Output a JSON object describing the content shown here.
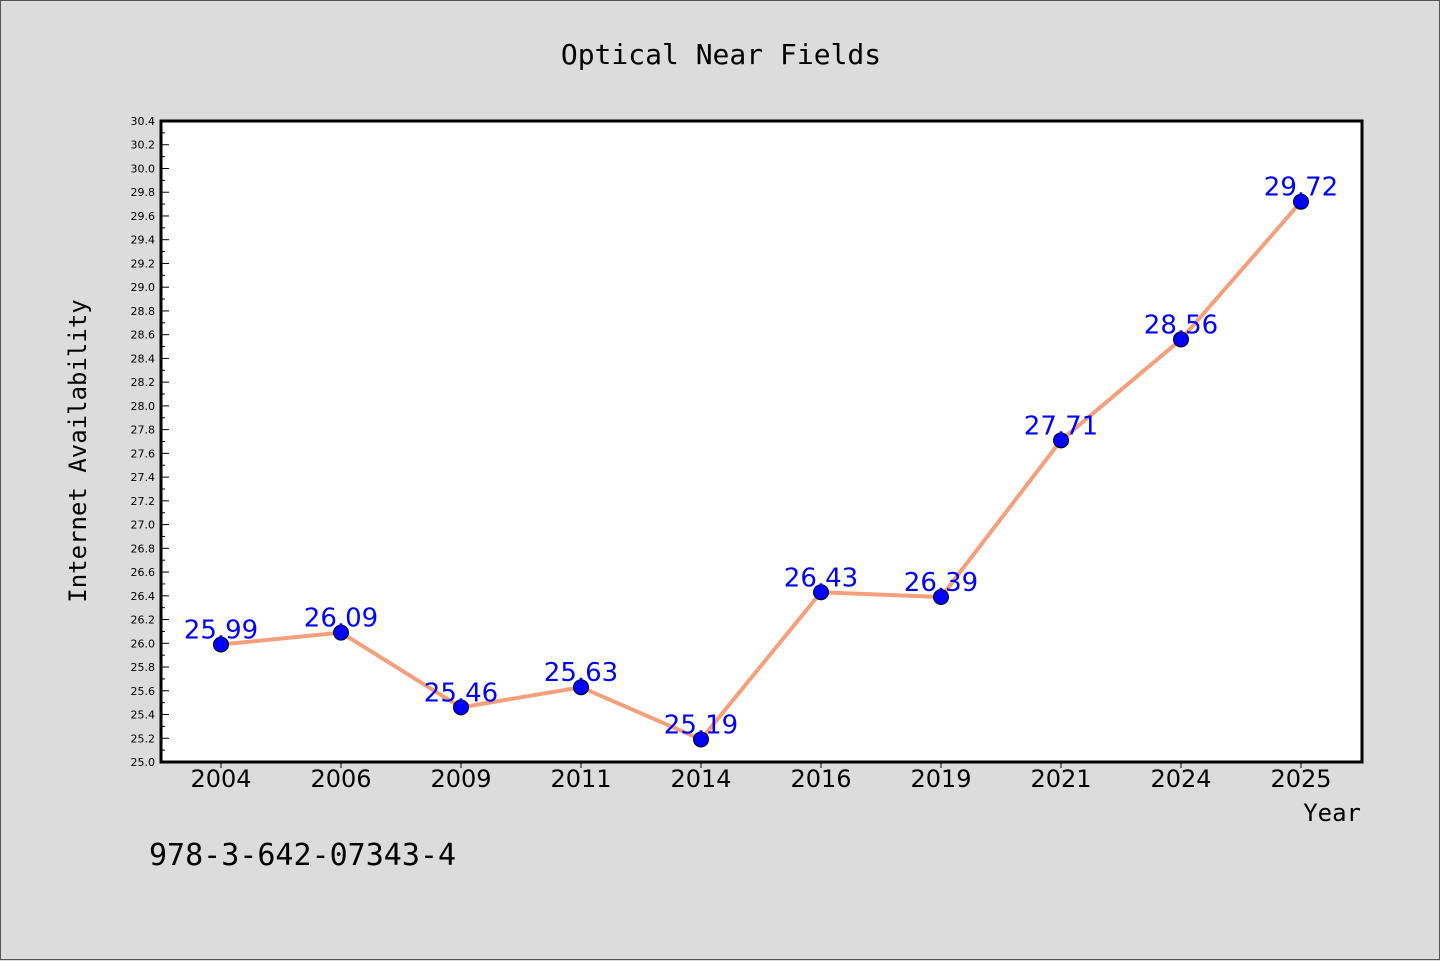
{
  "chart_data": {
    "type": "line",
    "title": "Optical Near Fields",
    "xlabel": "Year",
    "ylabel": "Internet Availability",
    "categories": [
      "2004",
      "2006",
      "2009",
      "2011",
      "2014",
      "2016",
      "2019",
      "2021",
      "2024",
      "2025"
    ],
    "values": [
      25.99,
      26.09,
      25.46,
      25.63,
      25.19,
      26.43,
      26.39,
      27.71,
      28.56,
      29.72
    ],
    "data_labels": [
      "25.99",
      "26.09",
      "25.46",
      "25.63",
      "25.19",
      "26.43",
      "26.39",
      "27.71",
      "28.56",
      "29.72"
    ],
    "ylim": [
      25.0,
      30.4
    ],
    "yticks": [
      "25.0",
      "25.2",
      "25.4",
      "25.6",
      "25.8",
      "26.0",
      "26.2",
      "26.4",
      "26.6",
      "26.8",
      "27.0",
      "27.2",
      "27.4",
      "27.6",
      "27.8",
      "28.0",
      "28.2",
      "28.4",
      "28.6",
      "28.8",
      "29.0",
      "29.2",
      "29.4",
      "29.6",
      "29.8",
      "30.0",
      "30.2",
      "30.4"
    ],
    "grid": false,
    "line_color": "#f4a07c",
    "marker_color": "#0000ff",
    "label_color": "#0000ff"
  },
  "annotation": {
    "isbn": "978-3-642-07343-4"
  }
}
